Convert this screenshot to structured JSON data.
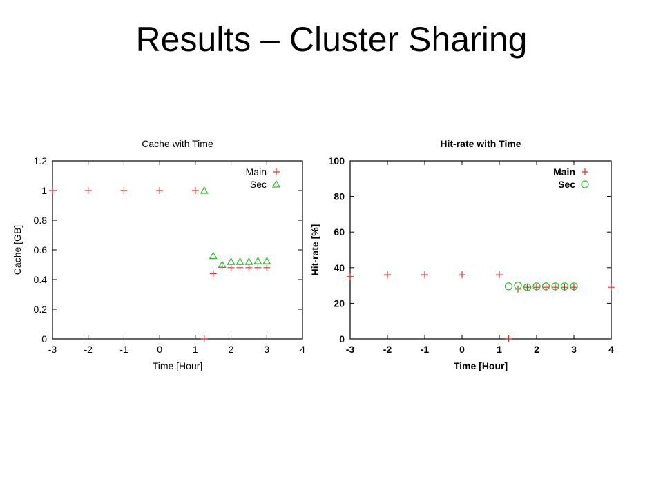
{
  "slide": {
    "title": "Results – Cluster Sharing"
  },
  "chart_data": [
    {
      "type": "scatter",
      "title": "Cache with Time",
      "xlabel": "Time [Hour]",
      "ylabel": "Cache [GB]",
      "xlim": [
        -3,
        4
      ],
      "ylim": [
        0,
        1.2
      ],
      "xticks": [
        -3,
        -2,
        -1,
        0,
        1,
        2,
        3,
        4
      ],
      "yticks": [
        0,
        0.2,
        0.4,
        0.6,
        0.8,
        1,
        1.2
      ],
      "xtick_labels": [
        "-3",
        "-2",
        "-1",
        "0",
        "1",
        "2",
        "3",
        "4"
      ],
      "ytick_labels": [
        "0",
        "0.2",
        "0.4",
        "0.6",
        "0.8",
        "1",
        "1.2"
      ],
      "legend_position": "top-right",
      "series": [
        {
          "name": "Main",
          "marker": "plus",
          "color": "#e0302c",
          "x": [
            -3,
            -2,
            -1,
            0,
            1,
            1.25,
            1.5,
            1.75,
            2,
            2.25,
            2.5,
            2.75,
            3
          ],
          "y": [
            1,
            1,
            1,
            1,
            1,
            0,
            0.44,
            0.49,
            0.48,
            0.48,
            0.48,
            0.48,
            0.48
          ]
        },
        {
          "name": "Sec",
          "marker": "triangle",
          "color": "#22c022",
          "x": [
            1.25,
            1.5,
            1.75,
            2,
            2.25,
            2.5,
            2.75,
            3
          ],
          "y": [
            1.0,
            0.56,
            0.5,
            0.52,
            0.52,
            0.52,
            0.525,
            0.525
          ]
        }
      ]
    },
    {
      "type": "scatter",
      "title": "Hit-rate with Time",
      "xlabel": "Time [Hour]",
      "ylabel": "Hit-rate [%]",
      "xlim": [
        -3,
        4
      ],
      "ylim": [
        0,
        100
      ],
      "xticks": [
        -3,
        -2,
        -1,
        0,
        1,
        2,
        3,
        4
      ],
      "yticks": [
        0,
        20,
        40,
        60,
        80,
        100
      ],
      "xtick_labels": [
        "-3",
        "-2",
        "-1",
        "0",
        "1",
        "2",
        "3",
        "4"
      ],
      "ytick_labels": [
        "0",
        "20",
        "40",
        "60",
        "80",
        "100"
      ],
      "legend_position": "top-right",
      "series": [
        {
          "name": "Main",
          "marker": "plus",
          "color": "#e0302c",
          "x": [
            -3,
            -2,
            -1,
            0,
            1,
            1.25,
            1.5,
            1.75,
            2,
            2.25,
            2.5,
            2.75,
            3,
            4
          ],
          "y": [
            35,
            36,
            36,
            36,
            36,
            0,
            28,
            29,
            29,
            29,
            29,
            29,
            29,
            29
          ]
        },
        {
          "name": "Sec",
          "marker": "circle",
          "color": "#22c022",
          "x": [
            1.25,
            1.5,
            1.75,
            2,
            2.25,
            2.5,
            2.75,
            3
          ],
          "y": [
            29.5,
            30,
            29,
            29.5,
            29.5,
            29.5,
            29.5,
            29.5
          ]
        }
      ]
    }
  ]
}
